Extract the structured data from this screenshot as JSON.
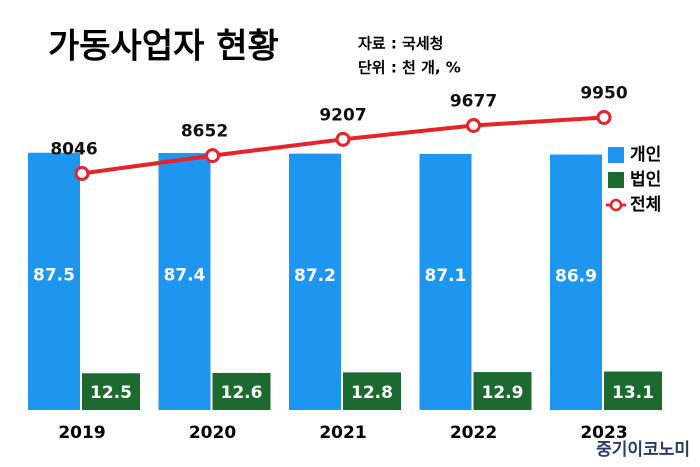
{
  "chart_data": {
    "type": "bar",
    "title": "가동사업자 현황",
    "source": "자료 : 국세청",
    "unit": "단위 : 천 개, %",
    "credit": "중기이코노미",
    "categories": [
      "2019",
      "2020",
      "2021",
      "2022",
      "2023"
    ],
    "series": [
      {
        "name": "개인",
        "color": "#1e96f0",
        "values": [
          87.5,
          87.4,
          87.2,
          87.1,
          86.9
        ]
      },
      {
        "name": "법인",
        "color": "#1d6a30",
        "values": [
          12.5,
          12.6,
          12.8,
          12.9,
          13.1
        ]
      },
      {
        "name": "전체",
        "color": "#e5232a",
        "type": "line",
        "axis": "y2",
        "values": [
          8046,
          8652,
          9207,
          9677,
          9950
        ]
      }
    ],
    "ylim": [
      0,
      100
    ],
    "y2lim": [
      0,
      10000
    ],
    "legend": "right"
  }
}
